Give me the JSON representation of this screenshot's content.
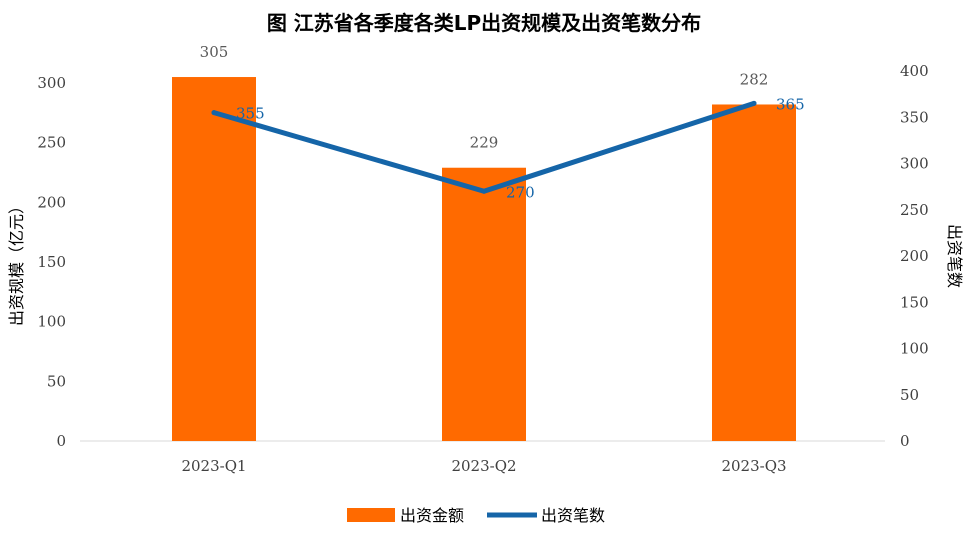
{
  "chart_data": {
    "type": "bar+line",
    "title": "图  江苏省各季度各类LP出资规模及出资笔数分布",
    "categories": [
      "2023-Q1",
      "2023-Q2",
      "2023-Q3"
    ],
    "series": [
      {
        "name": "出资金额",
        "type": "bar",
        "axis": "left",
        "values": [
          305,
          229,
          282
        ],
        "color": "#FF6A00"
      },
      {
        "name": "出资笔数",
        "type": "line",
        "axis": "right",
        "values": [
          355,
          270,
          365
        ],
        "color": "#1565A8"
      }
    ],
    "ylabel": "出资规模（亿元）",
    "ylabel_right": "出资笔数",
    "ylim": [
      0,
      300
    ],
    "ylim_right": [
      0,
      400
    ],
    "yticks": [
      0,
      50,
      100,
      150,
      200,
      250,
      300
    ],
    "yticks_right": [
      0,
      50,
      100,
      150,
      200,
      250,
      300,
      350,
      400
    ],
    "grid": false,
    "legend": "bottom"
  }
}
